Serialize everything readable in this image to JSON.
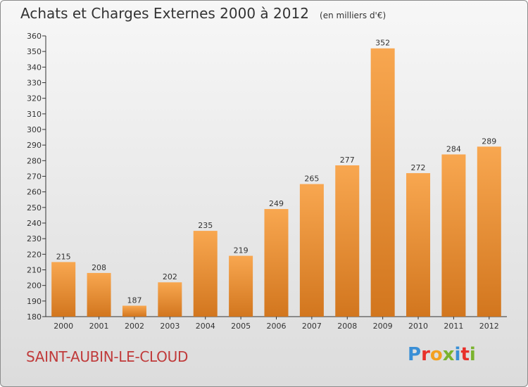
{
  "header": {
    "title": "Achats et Charges Externes 2000 à 2012",
    "unit": "(en milliers d'€)"
  },
  "footer": {
    "commune": "SAINT-AUBIN-LE-CLOUD",
    "brand": "Proxiti"
  },
  "colors": {
    "bar_light": "#f8a750",
    "bar_dark": "#d2761e",
    "commune": "#c03a3a",
    "brand_letters": [
      "#3a8fd6",
      "#e8302a",
      "#f3a020",
      "#7ab32e",
      "#3a8fd6",
      "#e8302a",
      "#7ab32e"
    ]
  },
  "chart_data": {
    "type": "bar",
    "title": "Achats et Charges Externes 2000 à 2012",
    "categories": [
      "2000",
      "2001",
      "2002",
      "2003",
      "2004",
      "2005",
      "2006",
      "2007",
      "2008",
      "2009",
      "2010",
      "2011",
      "2012"
    ],
    "values": [
      215,
      208,
      187,
      202,
      235,
      219,
      249,
      265,
      277,
      352,
      272,
      284,
      289
    ],
    "ylim": [
      180,
      360
    ],
    "yticks": [
      180,
      190,
      200,
      210,
      220,
      230,
      240,
      250,
      260,
      270,
      280,
      290,
      300,
      310,
      320,
      330,
      340,
      350,
      360
    ],
    "grid": false,
    "xlabel": "",
    "ylabel": ""
  }
}
